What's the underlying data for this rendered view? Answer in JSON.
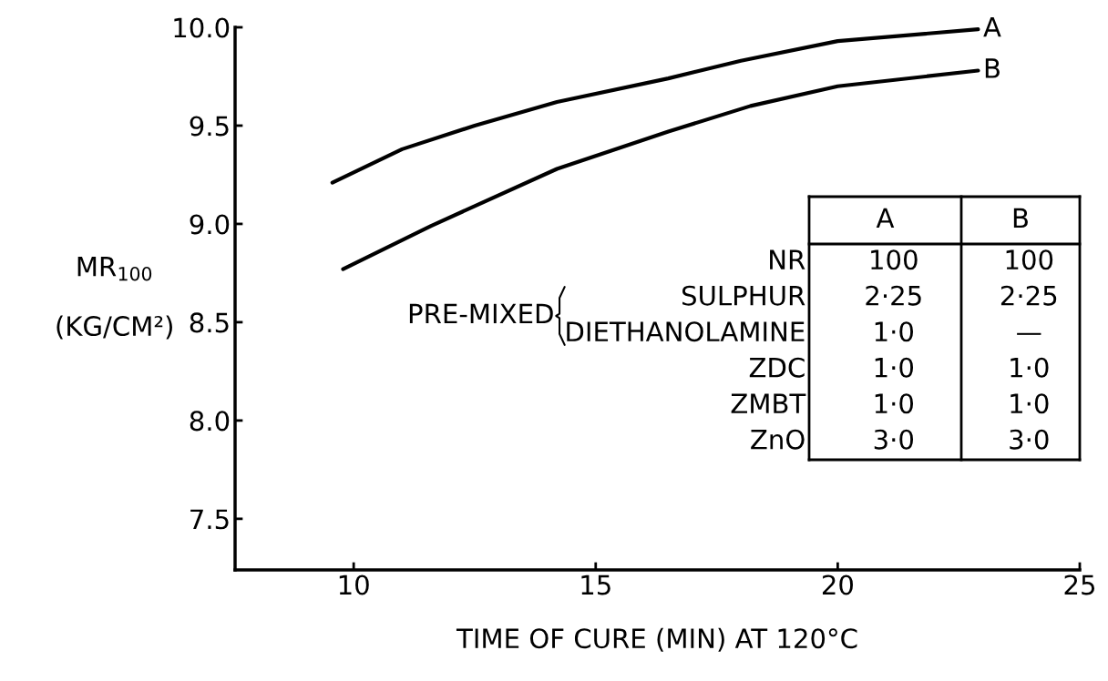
{
  "chart_data": {
    "type": "line",
    "xlabel": "TIME OF CURE (MIN) AT 120°C",
    "ylabel": "MR$_{100}$\n\n(KG/CM²)",
    "xlim": [
      7.55,
      25
    ],
    "ylim": [
      7.24,
      10.0
    ],
    "xticks": [
      10,
      15,
      20,
      25
    ],
    "yticks": [
      {
        "value": 7.5,
        "label": "7.5"
      },
      {
        "value": 8.0,
        "label": "8.0"
      },
      {
        "value": 8.5,
        "label": "8.5"
      },
      {
        "value": 9.0,
        "label": "9.0"
      },
      {
        "value": 9.5,
        "label": "9.5"
      },
      {
        "value": 10.0,
        "label": "10.0"
      }
    ],
    "series": [
      {
        "name": "A",
        "color": "#000000",
        "x": [
          9.56,
          11,
          12.5,
          14.2,
          16.5,
          18,
          20,
          22.9
        ],
        "values": [
          9.21,
          9.38,
          9.5,
          9.62,
          9.74,
          9.83,
          9.93,
          9.99
        ]
      },
      {
        "name": "B",
        "color": "#000000",
        "x": [
          9.78,
          11.6,
          14.2,
          16.5,
          18.2,
          20,
          22.9
        ],
        "values": [
          8.77,
          8.99,
          9.28,
          9.47,
          9.6,
          9.7,
          9.78
        ]
      }
    ],
    "annotations": [
      "A",
      "B",
      "NR",
      "100",
      "100",
      "SULPHUR",
      "2·25",
      "2·25",
      "DIETHANOLAMINE",
      "1·0",
      "—",
      "ZDC",
      "1·0",
      "1·0",
      "ZMBT",
      "1·0",
      "1·0",
      "ZnO",
      "3·0",
      "3·0",
      "PRE-MIXED"
    ],
    "grid": false,
    "legend": false,
    "marker": "none",
    "line_style": "solid"
  }
}
